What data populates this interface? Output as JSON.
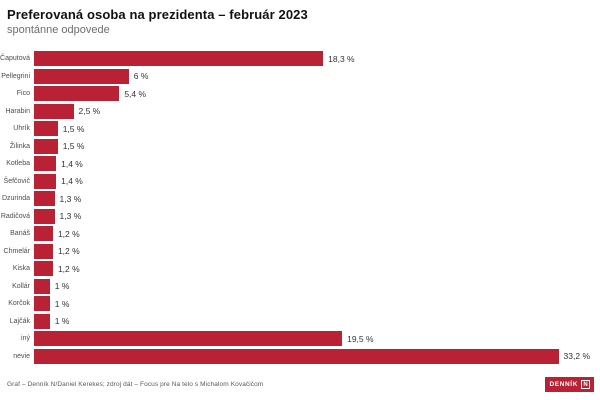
{
  "title": "Preferovaná osoba na prezidenta – február 2023",
  "subtitle": "spontánne odpovede",
  "footer": {
    "credit": "Graf – Denník N/Daniel Kerekes; zdroj dát – Focus pre Na telo s Michalom Kovačičom",
    "logo_text": "DENNÍK",
    "logo_n": "N"
  },
  "colors": {
    "bar": "#b92134",
    "title": "#111111",
    "subtitle": "#6e6e6e",
    "category_label": "#4d4d4d",
    "value_label": "#333333",
    "footer_text": "#5a5a5a",
    "logo_bg": "#b92134"
  },
  "chart_data": {
    "type": "bar",
    "orientation": "horizontal",
    "title": "Preferovaná osoba na prezidenta – február 2023",
    "subtitle": "spontánne odpovede",
    "categories": [
      "Čaputová",
      "Pellegrini",
      "Fico",
      "Harabin",
      "Uhrík",
      "Žilinka",
      "Kotleba",
      "Šefčovič",
      "Dzurinda",
      "Radičová",
      "Banáš",
      "Chmelár",
      "Kiska",
      "Kollár",
      "Korčok",
      "Lajčák",
      "iný",
      "nevie"
    ],
    "values": [
      18.3,
      6,
      5.4,
      2.5,
      1.5,
      1.5,
      1.4,
      1.4,
      1.3,
      1.3,
      1.2,
      1.2,
      1.2,
      1,
      1,
      1,
      19.5,
      33.2
    ],
    "value_labels": [
      "18,3 %",
      "6 %",
      "5,4 %",
      "2,5 %",
      "1,5 %",
      "1,5 %",
      "1,4 %",
      "1,4 %",
      "1,3 %",
      "1,3 %",
      "1,2 %",
      "1,2 %",
      "1,2 %",
      "1 %",
      "1 %",
      "1 %",
      "19,5 %",
      "33,2 %"
    ],
    "unit": "%",
    "xlim": [
      0,
      35
    ],
    "grid": false,
    "legend": false,
    "bar_color": "#b92134",
    "value_labels_position": "outside-end"
  }
}
